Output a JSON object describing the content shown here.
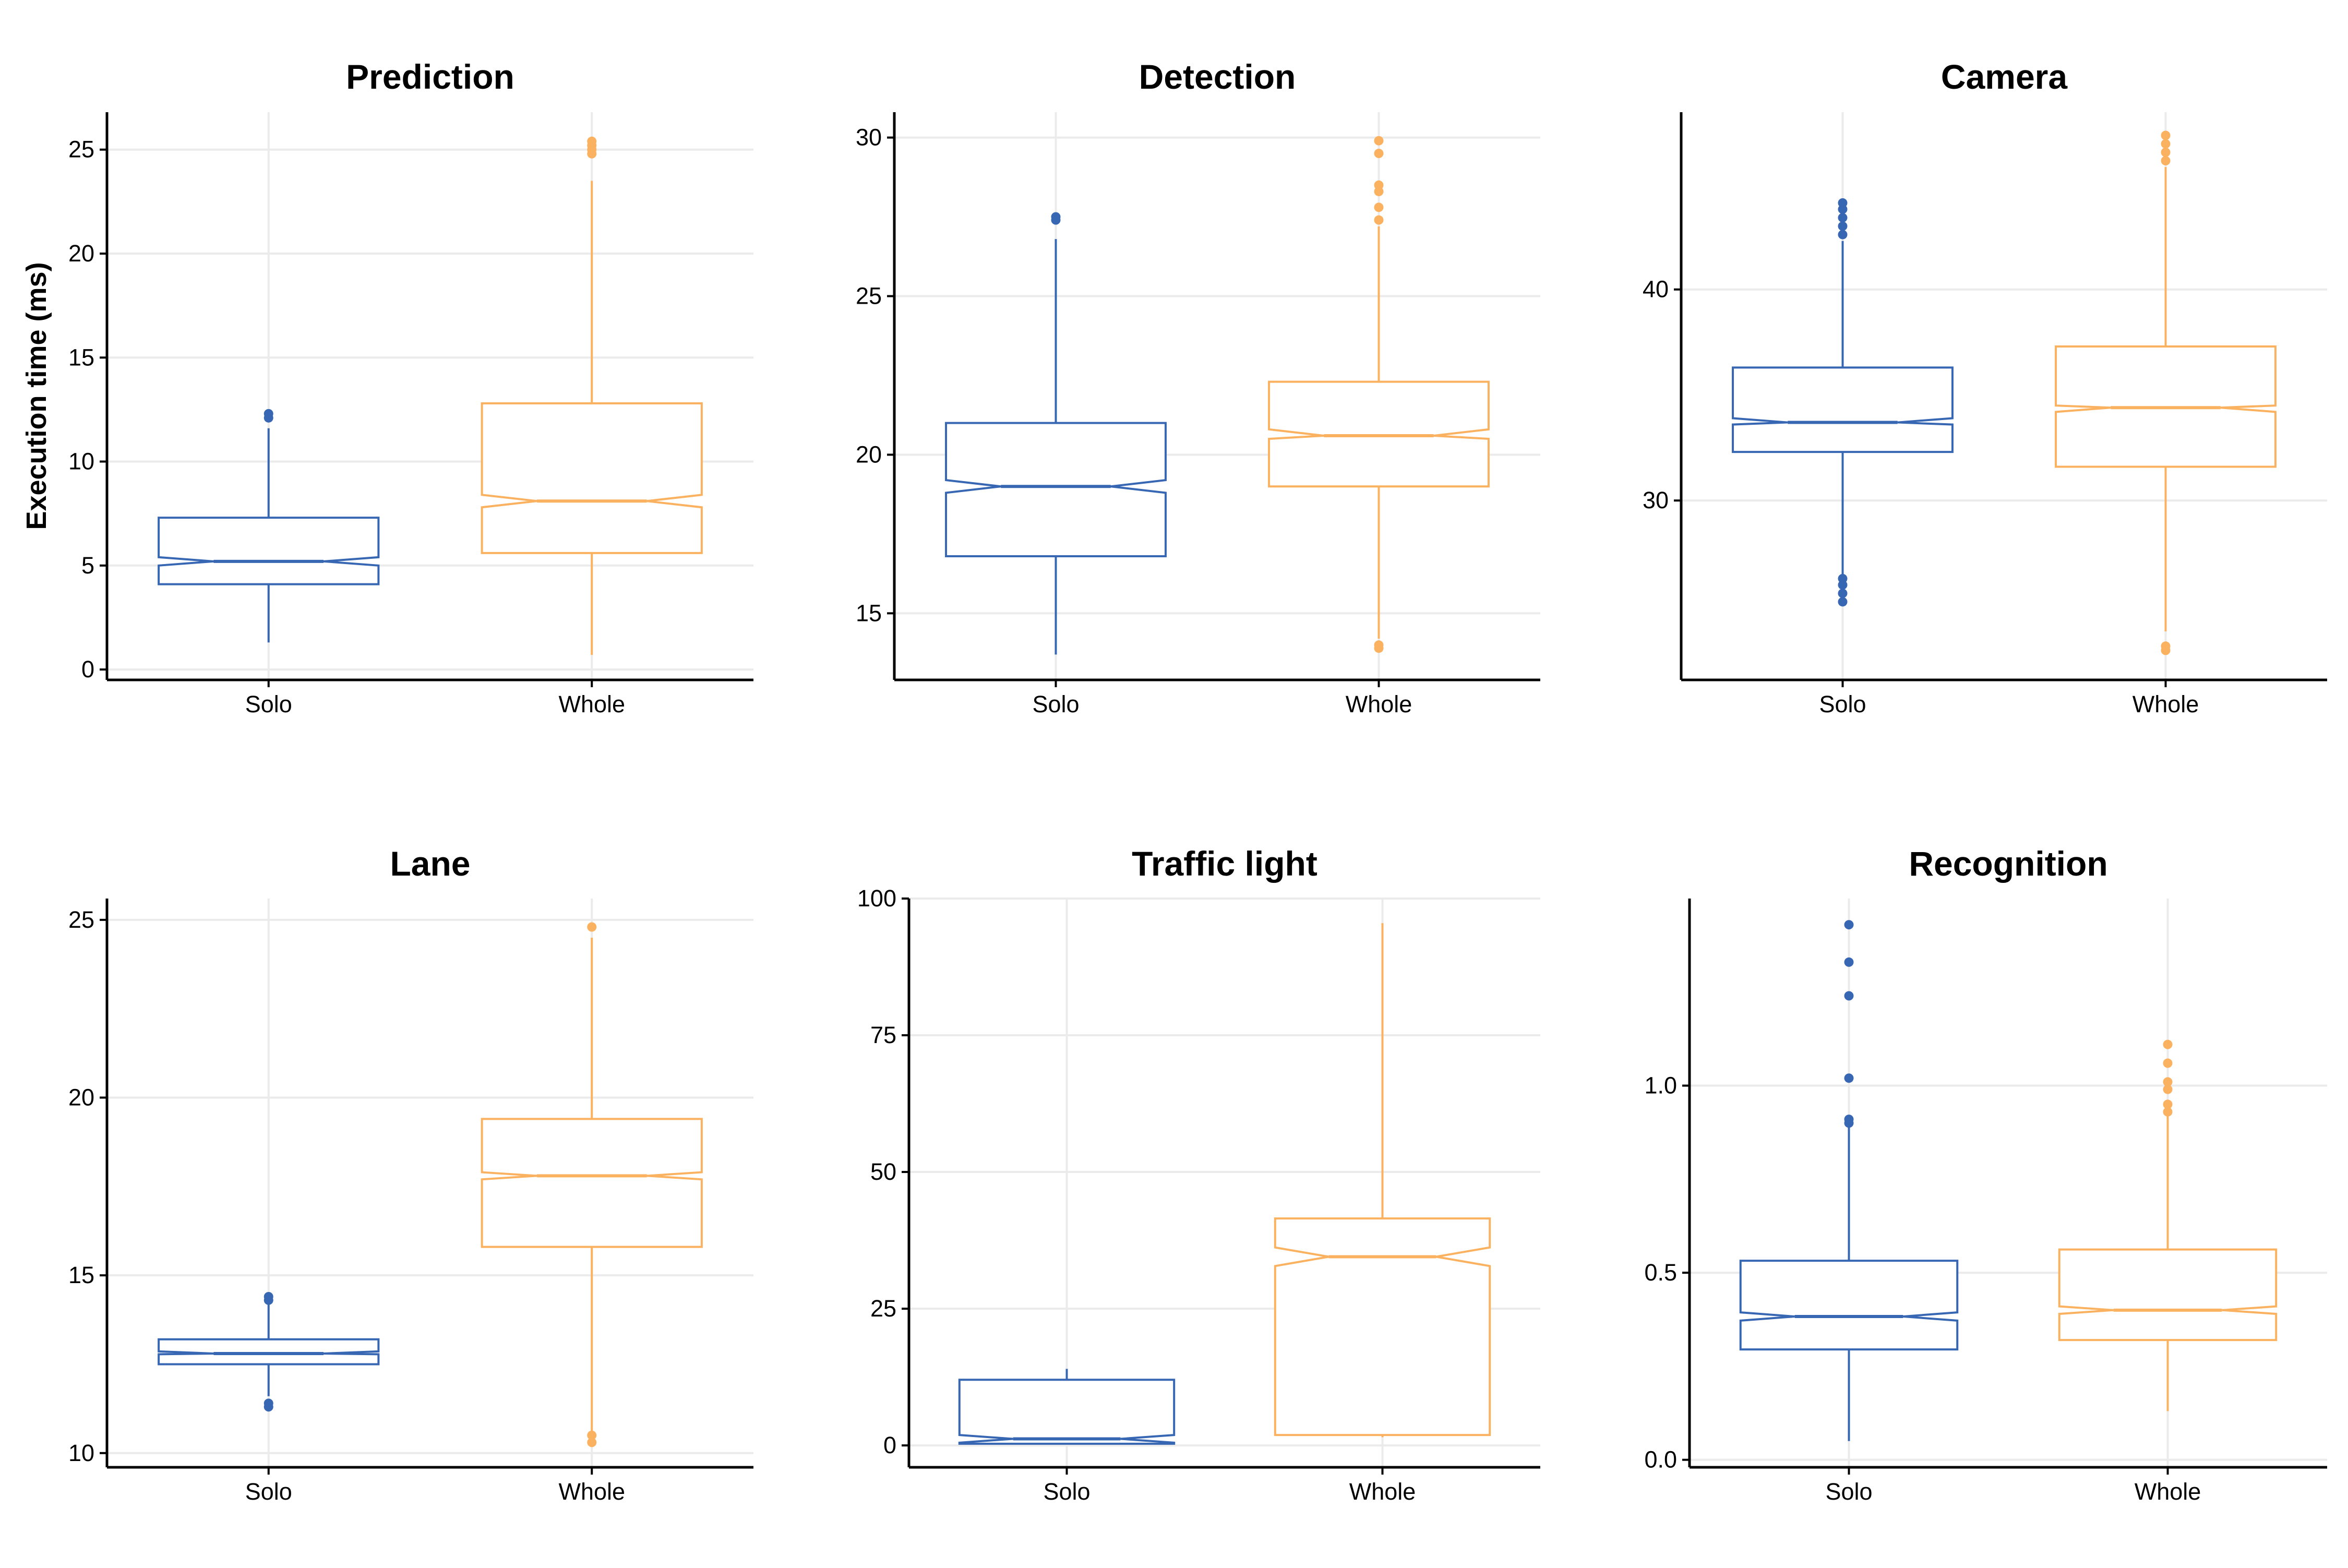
{
  "y_axis_title": "Execution time (ms)",
  "colors": {
    "solo": "#3767b3",
    "whole": "#fbb260",
    "grid": "#ebebeb",
    "axis": "#000000"
  },
  "chart_data": [
    {
      "type": "boxplot",
      "title": "Prediction",
      "categories": [
        "Solo",
        "Whole"
      ],
      "ylim": [
        -0.5,
        26.8
      ],
      "yticks": [
        0,
        5,
        10,
        15,
        20,
        25
      ],
      "notched": true,
      "grid": true,
      "boxes": [
        {
          "name": "Solo",
          "color": "#3767b3",
          "whisker_low": 1.3,
          "q1": 4.1,
          "median": 5.2,
          "q3": 7.3,
          "whisker_high": 11.6,
          "notch_low": 5.0,
          "notch_high": 5.4,
          "outliers": [
            12.1,
            12.3
          ]
        },
        {
          "name": "Whole",
          "color": "#fbb260",
          "whisker_low": 0.7,
          "q1": 5.6,
          "median": 8.1,
          "q3": 12.8,
          "whisker_high": 23.5,
          "notch_low": 7.8,
          "notch_high": 8.4,
          "outliers": [
            24.8,
            25.0,
            25.2,
            25.4
          ]
        }
      ]
    },
    {
      "type": "boxplot",
      "title": "Detection",
      "categories": [
        "Solo",
        "Whole"
      ],
      "ylim": [
        12.9,
        30.8
      ],
      "yticks": [
        15,
        20,
        25,
        30
      ],
      "notched": true,
      "grid": true,
      "boxes": [
        {
          "name": "Solo",
          "color": "#3767b3",
          "whisker_low": 13.7,
          "q1": 16.8,
          "median": 19.0,
          "q3": 21.0,
          "whisker_high": 26.8,
          "notch_low": 18.8,
          "notch_high": 19.2,
          "outliers": [
            27.4,
            27.5
          ]
        },
        {
          "name": "Whole",
          "color": "#fbb260",
          "whisker_low": 14.2,
          "q1": 19.0,
          "median": 20.6,
          "q3": 22.3,
          "whisker_high": 27.2,
          "notch_low": 20.5,
          "notch_high": 20.8,
          "outliers": [
            13.9,
            14.0,
            27.4,
            27.8,
            28.3,
            28.5,
            29.5,
            29.9
          ]
        }
      ]
    },
    {
      "type": "boxplot",
      "title": "Camera",
      "categories": [
        "Solo",
        "Whole"
      ],
      "ylim": [
        21.5,
        48.4
      ],
      "yticks": [
        30,
        40
      ],
      "notched": true,
      "grid": true,
      "boxes": [
        {
          "name": "Solo",
          "color": "#3767b3",
          "whisker_low": 26.5,
          "q1": 32.3,
          "median": 33.7,
          "q3": 36.3,
          "whisker_high": 42.3,
          "notch_low": 33.6,
          "notch_high": 33.9,
          "outliers": [
            25.2,
            25.6,
            26.0,
            26.3,
            42.6,
            43.0,
            43.4,
            43.8,
            44.1
          ]
        },
        {
          "name": "Whole",
          "color": "#fbb260",
          "whisker_low": 23.8,
          "q1": 31.6,
          "median": 34.4,
          "q3": 37.3,
          "whisker_high": 45.8,
          "notch_low": 34.2,
          "notch_high": 34.5,
          "outliers": [
            22.9,
            23.1,
            46.1,
            46.5,
            46.9,
            47.3
          ]
        }
      ]
    },
    {
      "type": "boxplot",
      "title": "Lane",
      "categories": [
        "Solo",
        "Whole"
      ],
      "ylim": [
        9.6,
        25.6
      ],
      "yticks": [
        10,
        15,
        20,
        25
      ],
      "notched": true,
      "grid": true,
      "boxes": [
        {
          "name": "Solo",
          "color": "#3767b3",
          "whisker_low": 11.6,
          "q1": 12.5,
          "median": 12.8,
          "q3": 13.2,
          "whisker_high": 14.2,
          "notch_low": 12.78,
          "notch_high": 12.86,
          "outliers": [
            11.3,
            11.4,
            14.3,
            14.4
          ]
        },
        {
          "name": "Whole",
          "color": "#fbb260",
          "whisker_low": 10.6,
          "q1": 15.8,
          "median": 17.8,
          "q3": 19.4,
          "whisker_high": 24.5,
          "notch_low": 17.7,
          "notch_high": 17.9,
          "outliers": [
            10.3,
            10.5,
            24.8
          ]
        }
      ]
    },
    {
      "type": "boxplot",
      "title": "Traffic light",
      "categories": [
        "Solo",
        "Whole"
      ],
      "ylim": [
        -4,
        100
      ],
      "yticks": [
        0,
        25,
        50,
        75,
        100
      ],
      "notched": true,
      "grid": true,
      "boxes": [
        {
          "name": "Solo",
          "color": "#3767b3",
          "whisker_low": 0.2,
          "q1": 0.3,
          "median": 1.2,
          "q3": 12.0,
          "whisker_high": 14.0,
          "notch_low": 0.5,
          "notch_high": 1.9,
          "outliers": []
        },
        {
          "name": "Whole",
          "color": "#fbb260",
          "whisker_low": 1.5,
          "q1": 1.9,
          "median": 34.5,
          "q3": 41.5,
          "whisker_high": 95.5,
          "notch_low": 32.8,
          "notch_high": 36.2,
          "outliers": []
        }
      ]
    },
    {
      "type": "boxplot",
      "title": "Recognition",
      "categories": [
        "Solo",
        "Whole"
      ],
      "ylim": [
        -0.02,
        1.5
      ],
      "yticks": [
        0.0,
        0.5,
        1.0
      ],
      "notched": true,
      "grid": true,
      "boxes": [
        {
          "name": "Solo",
          "color": "#3767b3",
          "whisker_low": 0.05,
          "q1": 0.295,
          "median": 0.383,
          "q3": 0.532,
          "whisker_high": 0.9,
          "notch_low": 0.372,
          "notch_high": 0.394,
          "outliers": [
            0.9,
            0.91,
            1.02,
            1.24,
            1.33,
            1.43
          ]
        },
        {
          "name": "Whole",
          "color": "#fbb260",
          "whisker_low": 0.13,
          "q1": 0.32,
          "median": 0.4,
          "q3": 0.562,
          "whisker_high": 0.92,
          "notch_low": 0.39,
          "notch_high": 0.41,
          "outliers": [
            0.93,
            0.95,
            0.99,
            1.01,
            1.06,
            1.11
          ]
        }
      ]
    }
  ]
}
